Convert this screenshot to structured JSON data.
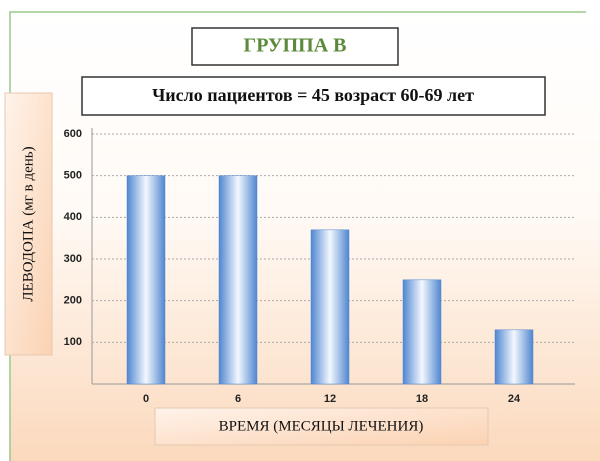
{
  "chart_data": {
    "type": "bar",
    "title": "ГРУППА В",
    "subtitle": "Число пациентов = 45 возраст 60-69 лет",
    "x_label": "ВРЕМЯ (МЕСЯЦЫ ЛЕЧЕНИЯ)",
    "y_label": "ЛЕВОДОПА (мг в день)",
    "categories": [
      "0",
      "6",
      "12",
      "18",
      "24"
    ],
    "values": [
      500,
      500,
      370,
      250,
      130
    ],
    "color": "#4f86d0",
    "ylim": [
      0,
      600
    ],
    "yticks": [
      100,
      200,
      300,
      400,
      500,
      600
    ],
    "grid": true
  }
}
